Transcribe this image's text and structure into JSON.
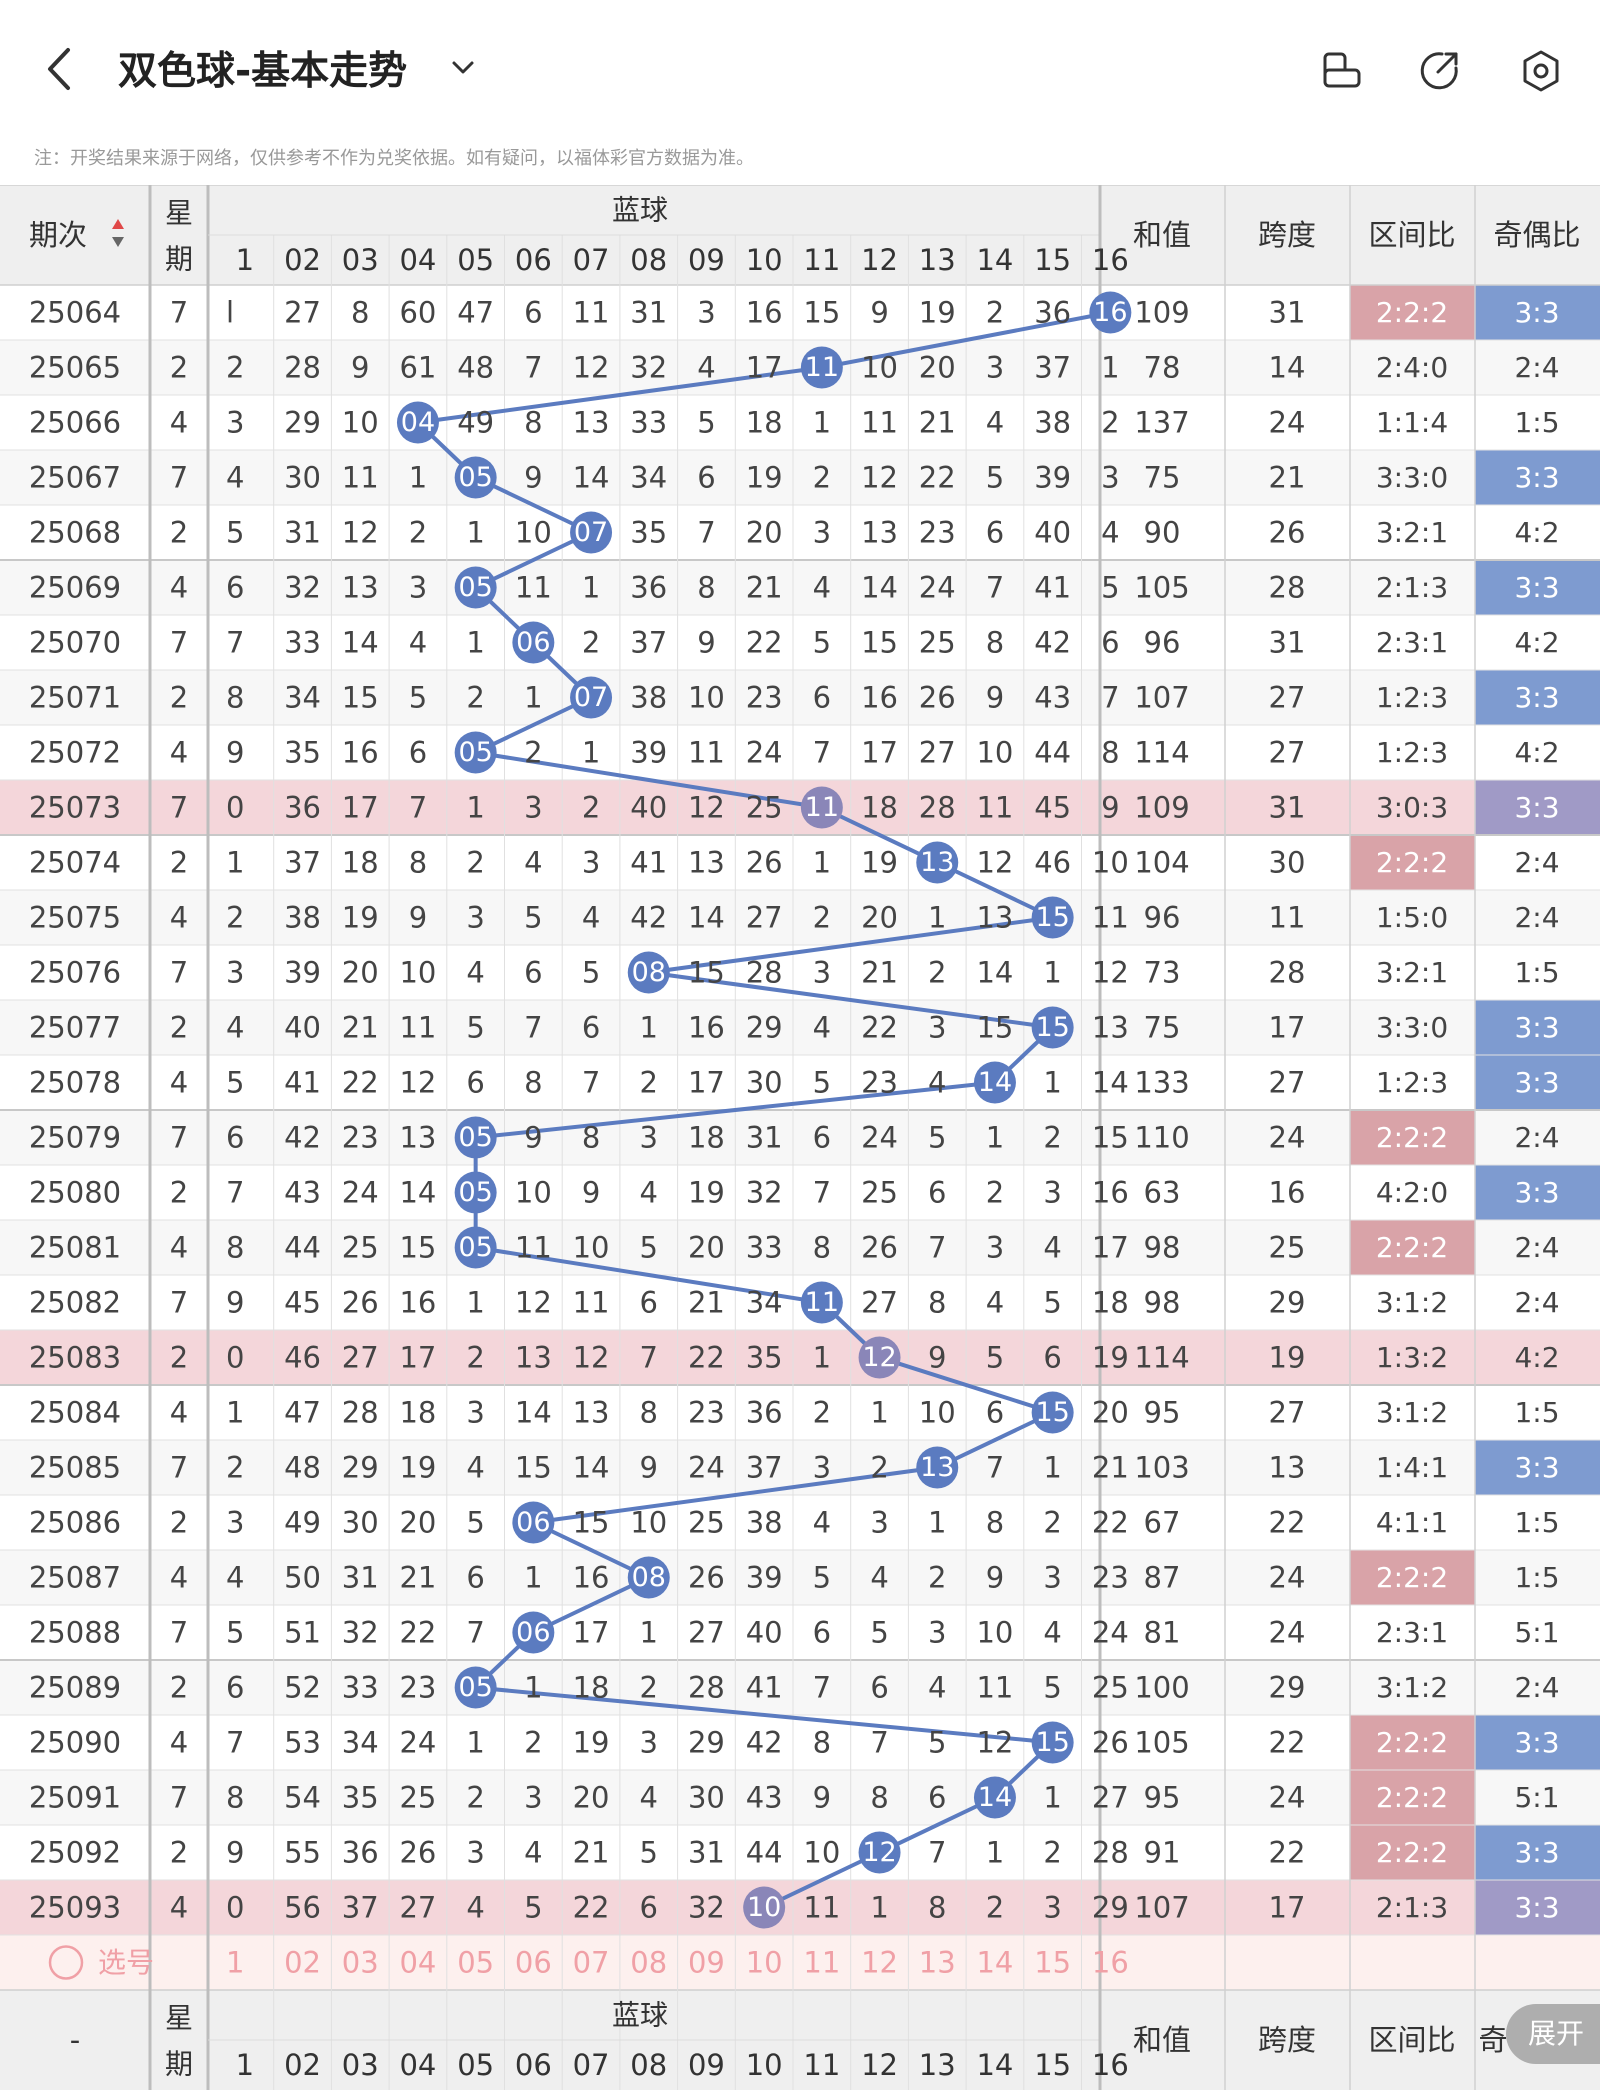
{
  "header": {
    "title": "双色球-基本走势",
    "notice": "注：开奖结果来源于网络，仅供参考不作为兑奖依据。如有疑问，以福体彩官方数据为准。"
  },
  "table": {
    "col_period": "期次",
    "col_week": "星期",
    "blue_group": "蓝球",
    "col_sum": "和值",
    "col_span": "跨度",
    "col_zone": "区间比",
    "col_oddeven": "奇偶比",
    "col_oddeven_partial": "奇",
    "footer_period": "-",
    "select_label": "选号",
    "expand_label": "展开",
    "blue_numbers": [
      "1",
      "02",
      "03",
      "04",
      "05",
      "06",
      "07",
      "08",
      "09",
      "10",
      "11",
      "12",
      "13",
      "14",
      "15",
      "16"
    ],
    "select_row": [
      "1",
      "02",
      "03",
      "04",
      "05",
      "06",
      "07",
      "08",
      "09",
      "10",
      "11",
      "12",
      "13",
      "14",
      "15",
      "16"
    ],
    "rows": [
      {
        "period": "25064",
        "week": "7",
        "cells": [
          "l",
          "27",
          "8",
          "60",
          "47",
          "6",
          "11",
          "31",
          "3",
          "16",
          "15",
          "9",
          "19",
          "2",
          "36",
          "16"
        ],
        "hit": 16,
        "sum": "109",
        "span": "31",
        "zone": "2:2:2",
        "zone_hl": true,
        "oe": "3:3",
        "oe_hl": true,
        "hl": false
      },
      {
        "period": "25065",
        "week": "2",
        "cells": [
          "2",
          "28",
          "9",
          "61",
          "48",
          "7",
          "12",
          "32",
          "4",
          "17",
          "11",
          "10",
          "20",
          "3",
          "37",
          "1"
        ],
        "hit": 11,
        "sum": "78",
        "span": "14",
        "zone": "2:4:0",
        "zone_hl": false,
        "oe": "2:4",
        "oe_hl": false,
        "hl": false
      },
      {
        "period": "25066",
        "week": "4",
        "cells": [
          "3",
          "29",
          "10",
          "04",
          "49",
          "8",
          "13",
          "33",
          "5",
          "18",
          "1",
          "11",
          "21",
          "4",
          "38",
          "2"
        ],
        "hit": 4,
        "sum": "137",
        "span": "24",
        "zone": "1:1:4",
        "zone_hl": false,
        "oe": "1:5",
        "oe_hl": false,
        "hl": false
      },
      {
        "period": "25067",
        "week": "7",
        "cells": [
          "4",
          "30",
          "11",
          "1",
          "05",
          "9",
          "14",
          "34",
          "6",
          "19",
          "2",
          "12",
          "22",
          "5",
          "39",
          "3"
        ],
        "hit": 5,
        "sum": "75",
        "span": "21",
        "zone": "3:3:0",
        "zone_hl": false,
        "oe": "3:3",
        "oe_hl": true,
        "hl": false
      },
      {
        "period": "25068",
        "week": "2",
        "cells": [
          "5",
          "31",
          "12",
          "2",
          "1",
          "10",
          "07",
          "35",
          "7",
          "20",
          "3",
          "13",
          "23",
          "6",
          "40",
          "4"
        ],
        "hit": 7,
        "sum": "90",
        "span": "26",
        "zone": "3:2:1",
        "zone_hl": false,
        "oe": "4:2",
        "oe_hl": false,
        "hl": false
      },
      {
        "period": "25069",
        "week": "4",
        "cells": [
          "6",
          "32",
          "13",
          "3",
          "05",
          "11",
          "1",
          "36",
          "8",
          "21",
          "4",
          "14",
          "24",
          "7",
          "41",
          "5"
        ],
        "hit": 5,
        "sum": "105",
        "span": "28",
        "zone": "2:1:3",
        "zone_hl": false,
        "oe": "3:3",
        "oe_hl": true,
        "hl": false
      },
      {
        "period": "25070",
        "week": "7",
        "cells": [
          "7",
          "33",
          "14",
          "4",
          "1",
          "06",
          "2",
          "37",
          "9",
          "22",
          "5",
          "15",
          "25",
          "8",
          "42",
          "6"
        ],
        "hit": 6,
        "sum": "96",
        "span": "31",
        "zone": "2:3:1",
        "zone_hl": false,
        "oe": "4:2",
        "oe_hl": false,
        "hl": false
      },
      {
        "period": "25071",
        "week": "2",
        "cells": [
          "8",
          "34",
          "15",
          "5",
          "2",
          "1",
          "07",
          "38",
          "10",
          "23",
          "6",
          "16",
          "26",
          "9",
          "43",
          "7"
        ],
        "hit": 7,
        "sum": "107",
        "span": "27",
        "zone": "1:2:3",
        "zone_hl": false,
        "oe": "3:3",
        "oe_hl": true,
        "hl": false
      },
      {
        "period": "25072",
        "week": "4",
        "cells": [
          "9",
          "35",
          "16",
          "6",
          "05",
          "2",
          "1",
          "39",
          "11",
          "24",
          "7",
          "17",
          "27",
          "10",
          "44",
          "8"
        ],
        "hit": 5,
        "sum": "114",
        "span": "27",
        "zone": "1:2:3",
        "zone_hl": false,
        "oe": "4:2",
        "oe_hl": false,
        "hl": false
      },
      {
        "period": "25073",
        "week": "7",
        "cells": [
          "0",
          "36",
          "17",
          "7",
          "1",
          "3",
          "2",
          "40",
          "12",
          "25",
          "11",
          "18",
          "28",
          "11",
          "45",
          "9"
        ],
        "hit": 11,
        "sum": "109",
        "span": "31",
        "zone": "3:0:3",
        "zone_hl": false,
        "oe": "3:3",
        "oe_hl": true,
        "hl": true
      },
      {
        "period": "25074",
        "week": "2",
        "cells": [
          "1",
          "37",
          "18",
          "8",
          "2",
          "4",
          "3",
          "41",
          "13",
          "26",
          "1",
          "19",
          "13",
          "12",
          "46",
          "10"
        ],
        "hit": 13,
        "sum": "104",
        "span": "30",
        "zone": "2:2:2",
        "zone_hl": true,
        "oe": "2:4",
        "oe_hl": false,
        "hl": false
      },
      {
        "period": "25075",
        "week": "4",
        "cells": [
          "2",
          "38",
          "19",
          "9",
          "3",
          "5",
          "4",
          "42",
          "14",
          "27",
          "2",
          "20",
          "1",
          "13",
          "15",
          "11"
        ],
        "hit": 15,
        "sum": "96",
        "span": "11",
        "zone": "1:5:0",
        "zone_hl": false,
        "oe": "2:4",
        "oe_hl": false,
        "hl": false
      },
      {
        "period": "25076",
        "week": "7",
        "cells": [
          "3",
          "39",
          "20",
          "10",
          "4",
          "6",
          "5",
          "08",
          "15",
          "28",
          "3",
          "21",
          "2",
          "14",
          "1",
          "12"
        ],
        "hit": 8,
        "sum": "73",
        "span": "28",
        "zone": "3:2:1",
        "zone_hl": false,
        "oe": "1:5",
        "oe_hl": false,
        "hl": false
      },
      {
        "period": "25077",
        "week": "2",
        "cells": [
          "4",
          "40",
          "21",
          "11",
          "5",
          "7",
          "6",
          "1",
          "16",
          "29",
          "4",
          "22",
          "3",
          "15",
          "15",
          "13"
        ],
        "hit": 15,
        "sum": "75",
        "span": "17",
        "zone": "3:3:0",
        "zone_hl": false,
        "oe": "3:3",
        "oe_hl": true,
        "hl": false
      },
      {
        "period": "25078",
        "week": "4",
        "cells": [
          "5",
          "41",
          "22",
          "12",
          "6",
          "8",
          "7",
          "2",
          "17",
          "30",
          "5",
          "23",
          "4",
          "14",
          "1",
          "14"
        ],
        "hit": 14,
        "sum": "133",
        "span": "27",
        "zone": "1:2:3",
        "zone_hl": false,
        "oe": "3:3",
        "oe_hl": true,
        "hl": false
      },
      {
        "period": "25079",
        "week": "7",
        "cells": [
          "6",
          "42",
          "23",
          "13",
          "05",
          "9",
          "8",
          "3",
          "18",
          "31",
          "6",
          "24",
          "5",
          "1",
          "2",
          "15"
        ],
        "hit": 5,
        "sum": "110",
        "span": "24",
        "zone": "2:2:2",
        "zone_hl": true,
        "oe": "2:4",
        "oe_hl": false,
        "hl": false
      },
      {
        "period": "25080",
        "week": "2",
        "cells": [
          "7",
          "43",
          "24",
          "14",
          "05",
          "10",
          "9",
          "4",
          "19",
          "32",
          "7",
          "25",
          "6",
          "2",
          "3",
          "16"
        ],
        "hit": 5,
        "sum": "63",
        "span": "16",
        "zone": "4:2:0",
        "zone_hl": false,
        "oe": "3:3",
        "oe_hl": true,
        "hl": false
      },
      {
        "period": "25081",
        "week": "4",
        "cells": [
          "8",
          "44",
          "25",
          "15",
          "05",
          "11",
          "10",
          "5",
          "20",
          "33",
          "8",
          "26",
          "7",
          "3",
          "4",
          "17"
        ],
        "hit": 5,
        "sum": "98",
        "span": "25",
        "zone": "2:2:2",
        "zone_hl": true,
        "oe": "2:4",
        "oe_hl": false,
        "hl": false
      },
      {
        "period": "25082",
        "week": "7",
        "cells": [
          "9",
          "45",
          "26",
          "16",
          "1",
          "12",
          "11",
          "6",
          "21",
          "34",
          "11",
          "27",
          "8",
          "4",
          "5",
          "18"
        ],
        "hit": 11,
        "sum": "98",
        "span": "29",
        "zone": "3:1:2",
        "zone_hl": false,
        "oe": "2:4",
        "oe_hl": false,
        "hl": false
      },
      {
        "period": "25083",
        "week": "2",
        "cells": [
          "0",
          "46",
          "27",
          "17",
          "2",
          "13",
          "12",
          "7",
          "22",
          "35",
          "1",
          "12",
          "9",
          "5",
          "6",
          "19"
        ],
        "hit": 12,
        "sum": "114",
        "span": "19",
        "zone": "1:3:2",
        "zone_hl": false,
        "oe": "4:2",
        "oe_hl": false,
        "hl": true
      },
      {
        "period": "25084",
        "week": "4",
        "cells": [
          "1",
          "47",
          "28",
          "18",
          "3",
          "14",
          "13",
          "8",
          "23",
          "36",
          "2",
          "1",
          "10",
          "6",
          "15",
          "20"
        ],
        "hit": 15,
        "sum": "95",
        "span": "27",
        "zone": "3:1:2",
        "zone_hl": false,
        "oe": "1:5",
        "oe_hl": false,
        "hl": false
      },
      {
        "period": "25085",
        "week": "7",
        "cells": [
          "2",
          "48",
          "29",
          "19",
          "4",
          "15",
          "14",
          "9",
          "24",
          "37",
          "3",
          "2",
          "13",
          "7",
          "1",
          "21"
        ],
        "hit": 13,
        "sum": "103",
        "span": "13",
        "zone": "1:4:1",
        "zone_hl": false,
        "oe": "3:3",
        "oe_hl": true,
        "hl": false
      },
      {
        "period": "25086",
        "week": "2",
        "cells": [
          "3",
          "49",
          "30",
          "20",
          "5",
          "06",
          "15",
          "10",
          "25",
          "38",
          "4",
          "3",
          "1",
          "8",
          "2",
          "22"
        ],
        "hit": 6,
        "sum": "67",
        "span": "22",
        "zone": "4:1:1",
        "zone_hl": false,
        "oe": "1:5",
        "oe_hl": false,
        "hl": false
      },
      {
        "period": "25087",
        "week": "4",
        "cells": [
          "4",
          "50",
          "31",
          "21",
          "6",
          "1",
          "16",
          "08",
          "26",
          "39",
          "5",
          "4",
          "2",
          "9",
          "3",
          "23"
        ],
        "hit": 8,
        "sum": "87",
        "span": "24",
        "zone": "2:2:2",
        "zone_hl": true,
        "oe": "1:5",
        "oe_hl": false,
        "hl": false
      },
      {
        "period": "25088",
        "week": "7",
        "cells": [
          "5",
          "51",
          "32",
          "22",
          "7",
          "06",
          "17",
          "1",
          "27",
          "40",
          "6",
          "5",
          "3",
          "10",
          "4",
          "24"
        ],
        "hit": 6,
        "sum": "81",
        "span": "24",
        "zone": "2:3:1",
        "zone_hl": false,
        "oe": "5:1",
        "oe_hl": false,
        "hl": false
      },
      {
        "period": "25089",
        "week": "2",
        "cells": [
          "6",
          "52",
          "33",
          "23",
          "05",
          "1",
          "18",
          "2",
          "28",
          "41",
          "7",
          "6",
          "4",
          "11",
          "5",
          "25"
        ],
        "hit": 5,
        "sum": "100",
        "span": "29",
        "zone": "3:1:2",
        "zone_hl": false,
        "oe": "2:4",
        "oe_hl": false,
        "hl": false
      },
      {
        "period": "25090",
        "week": "4",
        "cells": [
          "7",
          "53",
          "34",
          "24",
          "1",
          "2",
          "19",
          "3",
          "29",
          "42",
          "8",
          "7",
          "5",
          "12",
          "15",
          "26"
        ],
        "hit": 15,
        "sum": "105",
        "span": "22",
        "zone": "2:2:2",
        "zone_hl": true,
        "oe": "3:3",
        "oe_hl": true,
        "hl": false
      },
      {
        "period": "25091",
        "week": "7",
        "cells": [
          "8",
          "54",
          "35",
          "25",
          "2",
          "3",
          "20",
          "4",
          "30",
          "43",
          "9",
          "8",
          "6",
          "14",
          "1",
          "27"
        ],
        "hit": 14,
        "sum": "95",
        "span": "24",
        "zone": "2:2:2",
        "zone_hl": true,
        "oe": "5:1",
        "oe_hl": false,
        "hl": false
      },
      {
        "period": "25092",
        "week": "2",
        "cells": [
          "9",
          "55",
          "36",
          "26",
          "3",
          "4",
          "21",
          "5",
          "31",
          "44",
          "10",
          "12",
          "7",
          "1",
          "2",
          "28"
        ],
        "hit": 12,
        "sum": "91",
        "span": "22",
        "zone": "2:2:2",
        "zone_hl": true,
        "oe": "3:3",
        "oe_hl": true,
        "hl": false
      },
      {
        "period": "25093",
        "week": "4",
        "cells": [
          "0",
          "56",
          "37",
          "27",
          "4",
          "5",
          "22",
          "6",
          "32",
          "10",
          "11",
          "1",
          "8",
          "2",
          "3",
          "29"
        ],
        "hit": 10,
        "sum": "107",
        "span": "17",
        "zone": "2:1:3",
        "zone_hl": false,
        "oe": "3:3",
        "oe_hl": true,
        "hl": true
      }
    ]
  },
  "colors": {
    "ball_blue": "#5b7bc0",
    "ball_purple": "#8a86b8",
    "row_highlight": "#f4d6da",
    "zone_highlight": "#d9a3a8",
    "oe_highlight": "#7e9bd0",
    "oe_highlight_on_row": "#a09ac6",
    "select_row_bg": "#fdf0ee",
    "select_text": "#f0a0a6",
    "header_bg": "#efefef"
  }
}
